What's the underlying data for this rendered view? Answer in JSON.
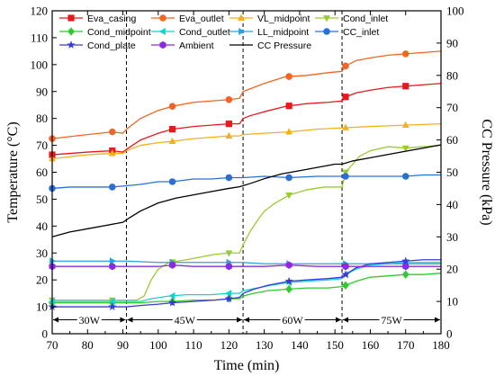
{
  "chart_data": {
    "type": "line",
    "xlabel": "Time (min)",
    "ylabel_left": "Temperature (°C)",
    "ylabel_right": "CC Pressure (kPa)",
    "xlim": [
      70,
      180
    ],
    "ylim_left": [
      0,
      120
    ],
    "ylim_right": [
      0,
      100
    ],
    "x_ticks": [
      70,
      80,
      90,
      100,
      110,
      120,
      130,
      140,
      150,
      160,
      170,
      180
    ],
    "y_ticks_left": [
      0,
      10,
      20,
      30,
      40,
      50,
      60,
      70,
      80,
      90,
      100,
      110,
      120
    ],
    "y_ticks_right": [
      0,
      10,
      20,
      30,
      40,
      50,
      60,
      70,
      80,
      90,
      100
    ],
    "phase_boundaries": [
      91,
      124,
      152
    ],
    "phases": [
      {
        "label": "30W",
        "x_start": 70,
        "x_end": 91
      },
      {
        "label": "45W",
        "x_start": 91,
        "x_end": 124
      },
      {
        "label": "60W",
        "x_start": 124,
        "x_end": 152
      },
      {
        "label": "75W",
        "x_start": 152,
        "x_end": 180
      }
    ],
    "legend_position": "top",
    "series": [
      {
        "name": "Eva_casing",
        "color": "#e8191c",
        "marker": "square",
        "axis": "left",
        "points": [
          [
            70,
            66.5
          ],
          [
            80,
            67.5
          ],
          [
            87,
            68
          ],
          [
            90,
            67.5
          ],
          [
            91,
            68.5
          ],
          [
            95,
            72
          ],
          [
            100,
            74.5
          ],
          [
            104,
            76
          ],
          [
            110,
            77
          ],
          [
            115,
            77.5
          ],
          [
            120,
            78
          ],
          [
            123,
            78
          ],
          [
            124,
            80
          ],
          [
            126,
            81
          ],
          [
            130,
            82.5
          ],
          [
            136,
            84.5
          ],
          [
            142,
            85.5
          ],
          [
            148,
            86
          ],
          [
            152,
            86.5
          ],
          [
            153,
            88
          ],
          [
            156,
            89.5
          ],
          [
            160,
            90.5
          ],
          [
            165,
            91.5
          ],
          [
            170,
            92
          ],
          [
            175,
            92.5
          ],
          [
            180,
            93
          ]
        ],
        "markers_x": [
          70,
          87,
          104,
          120,
          137,
          153,
          170
        ]
      },
      {
        "name": "Eva_outlet",
        "color": "#f26522",
        "marker": "circle",
        "axis": "left",
        "points": [
          [
            70,
            72.5
          ],
          [
            80,
            74
          ],
          [
            87,
            75
          ],
          [
            90,
            74.5
          ],
          [
            91,
            76
          ],
          [
            95,
            80
          ],
          [
            100,
            83
          ],
          [
            104,
            84.5
          ],
          [
            110,
            86
          ],
          [
            115,
            86.5
          ],
          [
            120,
            87
          ],
          [
            123,
            87.5
          ],
          [
            124,
            90
          ],
          [
            126,
            91
          ],
          [
            130,
            93
          ],
          [
            136,
            95.5
          ],
          [
            142,
            96
          ],
          [
            148,
            97
          ],
          [
            152,
            97.5
          ],
          [
            153,
            99.5
          ],
          [
            156,
            101.5
          ],
          [
            160,
            102.5
          ],
          [
            165,
            103.5
          ],
          [
            170,
            104
          ],
          [
            175,
            104.5
          ],
          [
            180,
            105
          ]
        ],
        "markers_x": [
          70,
          87,
          104,
          120,
          137,
          153,
          170
        ]
      },
      {
        "name": "VL_midpoint",
        "color": "#f5b01e",
        "marker": "triangle-up",
        "axis": "left",
        "points": [
          [
            70,
            65
          ],
          [
            80,
            66.5
          ],
          [
            87,
            67
          ],
          [
            90,
            67
          ],
          [
            91,
            68
          ],
          [
            95,
            70
          ],
          [
            100,
            71
          ],
          [
            104,
            71.5
          ],
          [
            110,
            72.5
          ],
          [
            115,
            73
          ],
          [
            120,
            73.5
          ],
          [
            123,
            73.5
          ],
          [
            124,
            74
          ],
          [
            130,
            74.5
          ],
          [
            137,
            75
          ],
          [
            145,
            76
          ],
          [
            152,
            76.5
          ],
          [
            160,
            77
          ],
          [
            170,
            77.5
          ],
          [
            180,
            78
          ]
        ],
        "markers_x": [
          70,
          87,
          104,
          120,
          137,
          153,
          170
        ]
      },
      {
        "name": "Cond_inlet",
        "color": "#9acd2c",
        "marker": "triangle-down",
        "axis": "left",
        "points": [
          [
            70,
            12.5
          ],
          [
            80,
            12.5
          ],
          [
            87,
            12.5
          ],
          [
            91,
            12.5
          ],
          [
            94,
            12.5
          ],
          [
            96,
            14
          ],
          [
            98,
            20
          ],
          [
            100,
            24
          ],
          [
            103,
            26.5
          ],
          [
            108,
            27.5
          ],
          [
            112,
            28.5
          ],
          [
            116,
            29.5
          ],
          [
            120,
            30
          ],
          [
            123,
            30
          ],
          [
            124,
            33
          ],
          [
            126,
            38
          ],
          [
            128,
            42
          ],
          [
            130,
            45.5
          ],
          [
            133,
            48.5
          ],
          [
            137,
            51.5
          ],
          [
            142,
            53.5
          ],
          [
            147,
            54.5
          ],
          [
            152,
            54.5
          ],
          [
            153,
            60
          ],
          [
            155,
            63
          ],
          [
            157,
            66
          ],
          [
            160,
            68
          ],
          [
            165,
            69.5
          ],
          [
            170,
            69
          ],
          [
            175,
            69.5
          ],
          [
            180,
            70
          ]
        ],
        "markers_x": [
          70,
          87,
          104,
          120,
          137,
          153,
          170
        ]
      },
      {
        "name": "Cond_midpoint",
        "color": "#2ecc2e",
        "marker": "diamond",
        "axis": "left",
        "points": [
          [
            70,
            11.5
          ],
          [
            80,
            11.5
          ],
          [
            87,
            11.5
          ],
          [
            91,
            11.5
          ],
          [
            95,
            11.5
          ],
          [
            100,
            12
          ],
          [
            104,
            12
          ],
          [
            110,
            12.5
          ],
          [
            116,
            12.5
          ],
          [
            120,
            13
          ],
          [
            123,
            13
          ],
          [
            124,
            14
          ],
          [
            127,
            15
          ],
          [
            131,
            16
          ],
          [
            136,
            16.5
          ],
          [
            142,
            17
          ],
          [
            148,
            17
          ],
          [
            152,
            17.5
          ],
          [
            153,
            18
          ],
          [
            156,
            19.5
          ],
          [
            160,
            21
          ],
          [
            165,
            21.5
          ],
          [
            170,
            22
          ],
          [
            175,
            22
          ],
          [
            180,
            22.5
          ]
        ],
        "markers_x": [
          70,
          87,
          104,
          120,
          137,
          153,
          170
        ]
      },
      {
        "name": "Cond_outlet",
        "color": "#19d1d1",
        "marker": "triangle-left",
        "axis": "left",
        "points": [
          [
            70,
            12
          ],
          [
            80,
            12
          ],
          [
            87,
            12
          ],
          [
            91,
            12
          ],
          [
            95,
            12
          ],
          [
            98,
            13
          ],
          [
            103,
            14
          ],
          [
            108,
            14.5
          ],
          [
            115,
            14.5
          ],
          [
            120,
            15
          ],
          [
            123,
            15
          ],
          [
            124,
            16
          ],
          [
            128,
            17
          ],
          [
            132,
            18
          ],
          [
            137,
            19
          ],
          [
            142,
            19.5
          ],
          [
            148,
            20
          ],
          [
            152,
            20.5
          ],
          [
            153,
            22
          ],
          [
            156,
            24
          ],
          [
            160,
            25.5
          ],
          [
            165,
            26
          ],
          [
            170,
            26.5
          ],
          [
            175,
            26.5
          ],
          [
            180,
            26.5
          ]
        ],
        "markers_x": [
          70,
          87,
          104,
          120,
          137,
          153,
          170
        ]
      },
      {
        "name": "LL_midpoint",
        "color": "#2aa0e6",
        "marker": "triangle-right",
        "axis": "left",
        "points": [
          [
            70,
            27
          ],
          [
            80,
            27
          ],
          [
            87,
            27
          ],
          [
            91,
            27
          ],
          [
            100,
            26.5
          ],
          [
            104,
            26.5
          ],
          [
            110,
            26.5
          ],
          [
            120,
            26.5
          ],
          [
            124,
            26.5
          ],
          [
            130,
            26
          ],
          [
            137,
            26
          ],
          [
            145,
            26
          ],
          [
            152,
            26
          ],
          [
            160,
            26
          ],
          [
            170,
            26
          ],
          [
            180,
            26
          ]
        ],
        "markers_x": [
          70,
          87,
          104,
          120,
          137,
          153,
          170
        ]
      },
      {
        "name": "CC_inlet",
        "color": "#2a6fd6",
        "marker": "circle",
        "axis": "left",
        "points": [
          [
            70,
            54
          ],
          [
            75,
            54.5
          ],
          [
            80,
            54.5
          ],
          [
            87,
            54.5
          ],
          [
            91,
            55
          ],
          [
            95,
            55.5
          ],
          [
            100,
            56.5
          ],
          [
            104,
            56.5
          ],
          [
            110,
            57.5
          ],
          [
            115,
            57.5
          ],
          [
            120,
            58
          ],
          [
            124,
            58
          ],
          [
            130,
            58.5
          ],
          [
            137,
            58
          ],
          [
            145,
            58.5
          ],
          [
            152,
            58.5
          ],
          [
            160,
            58.5
          ],
          [
            170,
            58.5
          ],
          [
            175,
            59
          ],
          [
            180,
            59
          ]
        ],
        "markers_x": [
          70,
          87,
          104,
          120,
          137,
          153,
          170
        ]
      },
      {
        "name": "Cond_plate",
        "color": "#3a3ad8",
        "marker": "star",
        "axis": "left",
        "points": [
          [
            70,
            10
          ],
          [
            80,
            10
          ],
          [
            87,
            10
          ],
          [
            91,
            10
          ],
          [
            95,
            10.5
          ],
          [
            100,
            11
          ],
          [
            104,
            11.5
          ],
          [
            110,
            12
          ],
          [
            116,
            12.5
          ],
          [
            120,
            13
          ],
          [
            123,
            13.5
          ],
          [
            124,
            15
          ],
          [
            127,
            16.5
          ],
          [
            131,
            18
          ],
          [
            137,
            19.5
          ],
          [
            142,
            20
          ],
          [
            148,
            20.5
          ],
          [
            152,
            21
          ],
          [
            153,
            22
          ],
          [
            156,
            24.5
          ],
          [
            160,
            26
          ],
          [
            165,
            26.5
          ],
          [
            170,
            27
          ],
          [
            175,
            27.5
          ],
          [
            180,
            27.5
          ]
        ],
        "markers_x": [
          70,
          87,
          104,
          120,
          137,
          153,
          170
        ]
      },
      {
        "name": "Ambient",
        "color": "#8a2be2",
        "marker": "hexagon",
        "axis": "left",
        "points": [
          [
            70,
            25
          ],
          [
            80,
            25
          ],
          [
            87,
            25
          ],
          [
            91,
            25
          ],
          [
            100,
            25
          ],
          [
            104,
            25.5
          ],
          [
            110,
            25
          ],
          [
            120,
            25
          ],
          [
            124,
            25
          ],
          [
            130,
            25
          ],
          [
            137,
            25.5
          ],
          [
            145,
            25
          ],
          [
            152,
            25
          ],
          [
            160,
            25
          ],
          [
            170,
            25
          ],
          [
            180,
            25
          ]
        ],
        "markers_x": [
          70,
          87,
          104,
          120,
          137,
          153,
          170
        ]
      },
      {
        "name": "CC Pressure",
        "color": "#000000",
        "marker": "none",
        "axis": "right",
        "points": [
          [
            70,
            30
          ],
          [
            75,
            31.5
          ],
          [
            80,
            32.5
          ],
          [
            85,
            33.5
          ],
          [
            90,
            34.5
          ],
          [
            92,
            36
          ],
          [
            95,
            38
          ],
          [
            100,
            40.5
          ],
          [
            105,
            42
          ],
          [
            110,
            43
          ],
          [
            115,
            44
          ],
          [
            120,
            45
          ],
          [
            123,
            45.5
          ],
          [
            126,
            46.5
          ],
          [
            130,
            48
          ],
          [
            135,
            49.5
          ],
          [
            140,
            50.5
          ],
          [
            145,
            51.5
          ],
          [
            150,
            52.5
          ],
          [
            152,
            52.5
          ],
          [
            155,
            53.5
          ],
          [
            160,
            54.5
          ],
          [
            165,
            55.5
          ],
          [
            170,
            56.5
          ],
          [
            175,
            57.5
          ],
          [
            180,
            58.5
          ]
        ],
        "markers_x": []
      }
    ]
  }
}
